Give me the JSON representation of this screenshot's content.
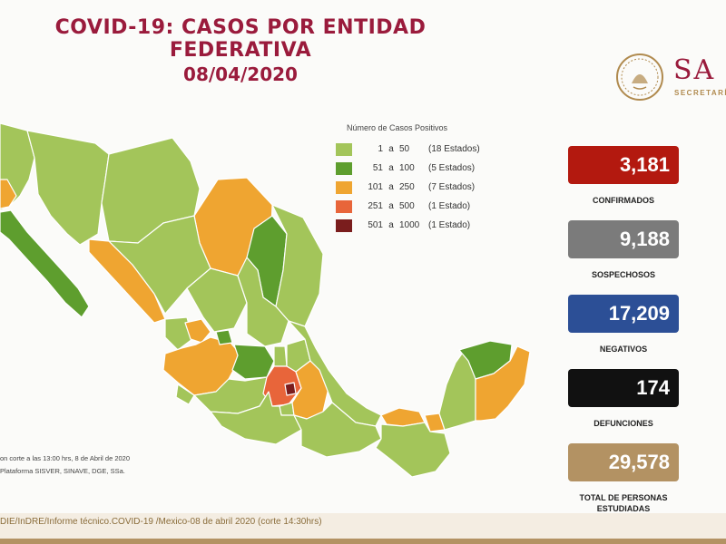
{
  "title": {
    "line1": "COVID-19: CASOS POR ENTIDAD FEDERATIVA",
    "line2": "08/04/2020"
  },
  "logo": {
    "text": "SA",
    "sub": "SECRETARÍ",
    "icon": "seal-icon"
  },
  "legend": {
    "title": "Número de Casos Positivos",
    "items": [
      {
        "min": "1",
        "sep": "a",
        "max": "50",
        "count": "(18 Estados)",
        "color": "#a3c55a"
      },
      {
        "min": "51",
        "sep": "a",
        "max": "100",
        "count": "(5 Estados)",
        "color": "#5e9e2e"
      },
      {
        "min": "101",
        "sep": "a",
        "max": "250",
        "count": "(7 Estados)",
        "color": "#efa531"
      },
      {
        "min": "251",
        "sep": "a",
        "max": "500",
        "count": "(1 Estado)",
        "color": "#e8653a"
      },
      {
        "min": "501",
        "sep": "a",
        "max": "1000",
        "count": "(1 Estado)",
        "color": "#7a1d1d"
      }
    ]
  },
  "stats": [
    {
      "value": "3,181",
      "label": "CONFIRMADOS",
      "color": "#b3190f"
    },
    {
      "value": "9,188",
      "label": "SOSPECHOSOS",
      "color": "#7b7b7b"
    },
    {
      "value": "17,209",
      "label": "NEGATIVOS",
      "color": "#2c4f96"
    },
    {
      "value": "174",
      "label": "DEFUNCIONES",
      "color": "#111111"
    },
    {
      "value": "29,578",
      "label": "TOTAL DE PERSONAS ESTUDIADAS",
      "color": "#b39263"
    }
  ],
  "note": {
    "line1": "on corte a las 13:00 hrs, 8 de Abril de 2020",
    "line2": "Plataforma SISVER, SINAVE, DGE, SSa."
  },
  "footer": {
    "text": "DIE/InDRE/Informe técnico.COVID-19 /Mexico-08 de abril 2020 (corte 14:30hrs)"
  }
}
